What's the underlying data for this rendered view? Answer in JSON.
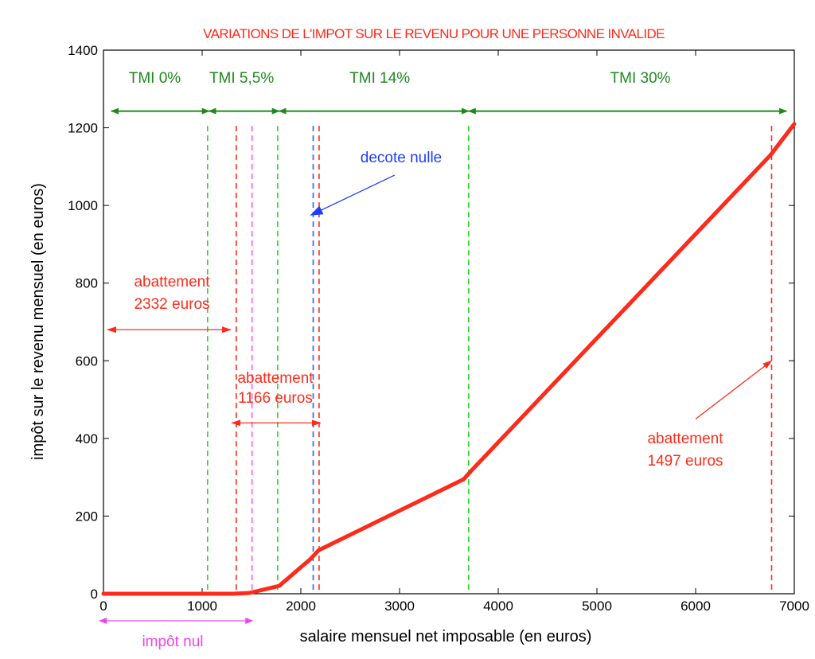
{
  "chart_data": {
    "type": "line",
    "title": "VARIATIONS DE L'IMPOT SUR LE REVENU POUR UNE PERSONNE INVALIDE",
    "xlabel": "salaire mensuel net imposable (en euros)",
    "ylabel": "impôt sur le revenu mensuel (en euros)",
    "xlim": [
      0,
      7000
    ],
    "ylim": [
      0,
      1400
    ],
    "xticks": [
      0,
      1000,
      2000,
      3000,
      4000,
      5000,
      6000,
      7000
    ],
    "yticks": [
      0,
      200,
      400,
      600,
      800,
      1000,
      1200,
      1400
    ],
    "grid": false,
    "colors": {
      "curve": "#ff2a1a",
      "title": "#ff2a1a",
      "tmi": "#1e8a1e",
      "vline_green": "#22dd22",
      "vline_red": "#ff2a1a",
      "vline_magenta": "#ff55ff",
      "vline_blue": "#3355ff",
      "annot_red": "#ff2a1a",
      "annot_blue": "#1f3fff",
      "annot_magenta": "#ee44ee"
    },
    "series": [
      {
        "x": [
          0,
          1320,
          1480,
          1780,
          2100,
          2180,
          3650,
          3720,
          6760,
          7000
        ],
        "y": [
          0,
          0,
          2,
          20,
          90,
          112,
          295,
          315,
          1130,
          1210
        ]
      }
    ],
    "vlines": [
      {
        "x": 1055,
        "color": "green"
      },
      {
        "x": 1345,
        "color": "red"
      },
      {
        "x": 1505,
        "color": "magenta"
      },
      {
        "x": 1765,
        "color": "green"
      },
      {
        "x": 2125,
        "color": "blue"
      },
      {
        "x": 2185,
        "color": "red"
      },
      {
        "x": 3700,
        "color": "green"
      },
      {
        "x": 6770,
        "color": "red"
      }
    ],
    "tmi_bands": [
      {
        "label": "TMI 0%",
        "x_from": 80,
        "x_to": 1070,
        "label_x": 520
      },
      {
        "label": "TMI 5,5%",
        "x_from": 1070,
        "x_to": 1780,
        "label_x": 1400
      },
      {
        "label": "TMI 14%",
        "x_from": 1780,
        "x_to": 3700,
        "label_x": 2800
      },
      {
        "label": "TMI 30%",
        "x_from": 3700,
        "x_to": 6920,
        "label_x": 5440
      }
    ],
    "annotations": {
      "decote": {
        "label": "decote nulle",
        "color": "blue"
      },
      "abattement_2332": {
        "line1": "abattement",
        "line2": "2332 euros",
        "color": "red"
      },
      "abattement_1166": {
        "line1": "abattement",
        "line2": "1166 euros",
        "color": "red"
      },
      "abattement_1497": {
        "line1": "abattement",
        "line2": "1497 euros",
        "color": "red"
      },
      "impot_nul": {
        "label": "impôt nul",
        "color": "magenta"
      }
    }
  }
}
